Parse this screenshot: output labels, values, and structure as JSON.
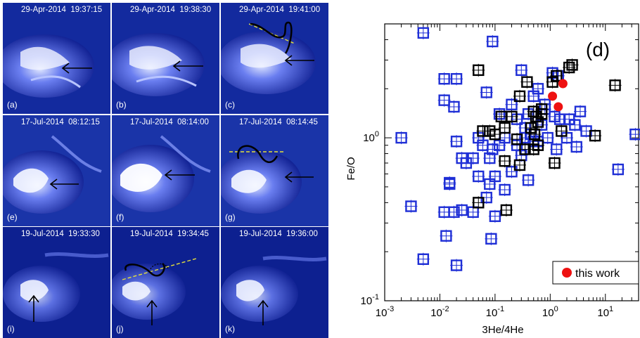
{
  "panels": [
    {
      "timestamp": "29-Apr-2014  19:37:15",
      "label": "(a)"
    },
    {
      "timestamp": "29-Apr-2014  19:38:30",
      "label": "(b)"
    },
    {
      "timestamp": "29-Apr-2014  19:41:00",
      "label": "(c)"
    },
    {
      "timestamp": "17-Jul-2014  08:12:15",
      "label": "(e)"
    },
    {
      "timestamp": "17-Jul-2014  08:14:00",
      "label": "(f)"
    },
    {
      "timestamp": "17-Jul-2014  08:14:45",
      "label": "(g)"
    },
    {
      "timestamp": "19-Jul-2014  19:33:30",
      "label": "(i)"
    },
    {
      "timestamp": "19-Jul-2014  19:34:45",
      "label": "(j)"
    },
    {
      "timestamp": "19-Jul-2014  19:36:00",
      "label": "(k)"
    }
  ],
  "chart_data": {
    "type": "scatter",
    "panel_label": "(d)",
    "xlabel": "3He/4He",
    "ylabel": "Fe/O",
    "xscale": "log",
    "yscale": "log",
    "xlim": [
      0.001,
      40
    ],
    "ylim": [
      0.1,
      5
    ],
    "x_ticks": [
      "10^-3",
      "10^-2",
      "10^-1",
      "10^0",
      "10^1"
    ],
    "y_ticks": [
      "10^-1",
      "10^0"
    ],
    "legend": {
      "label": "this work",
      "position": "bottom-right"
    },
    "colors": {
      "blue": "#1f2fd6",
      "black": "#000000",
      "red": "#ee1111"
    },
    "series": [
      {
        "name": "blue",
        "marker": "open-square",
        "points": [
          [
            0.005,
            4.4
          ],
          [
            0.09,
            3.9
          ],
          [
            0.012,
            2.3
          ],
          [
            0.02,
            2.3
          ],
          [
            0.012,
            1.7
          ],
          [
            0.018,
            1.55
          ],
          [
            0.07,
            1.9
          ],
          [
            0.12,
            1.4
          ],
          [
            0.3,
            2.6
          ],
          [
            0.5,
            1.8
          ],
          [
            0.8,
            1.5
          ],
          [
            1.1,
            2.5
          ],
          [
            1.4,
            2.4
          ],
          [
            1.5,
            1.3
          ],
          [
            2.2,
            1.3
          ],
          [
            3.5,
            1.45
          ],
          [
            4.5,
            1.1
          ],
          [
            2.8,
            1.2
          ],
          [
            2.0,
            1.0
          ],
          [
            1.3,
            0.85
          ],
          [
            3.0,
            0.88
          ],
          [
            0.2,
            1.6
          ],
          [
            0.25,
            1.3
          ],
          [
            0.35,
            1.15
          ],
          [
            0.45,
            1.05
          ],
          [
            0.6,
            0.95
          ],
          [
            0.7,
            1.2
          ],
          [
            0.9,
            1.0
          ],
          [
            0.15,
            1.0
          ],
          [
            0.12,
            0.9
          ],
          [
            0.09,
            0.85
          ],
          [
            0.08,
            0.75
          ],
          [
            0.06,
            0.9
          ],
          [
            0.05,
            1.0
          ],
          [
            0.04,
            0.75
          ],
          [
            0.03,
            0.7
          ],
          [
            0.025,
            0.75
          ],
          [
            0.02,
            0.95
          ],
          [
            0.015,
            0.52
          ],
          [
            0.015,
            0.53
          ],
          [
            0.05,
            0.58
          ],
          [
            0.08,
            0.52
          ],
          [
            0.1,
            0.58
          ],
          [
            0.15,
            0.48
          ],
          [
            0.2,
            0.62
          ],
          [
            0.3,
            0.78
          ],
          [
            0.4,
            0.55
          ],
          [
            0.003,
            0.38
          ],
          [
            0.012,
            0.35
          ],
          [
            0.018,
            0.35
          ],
          [
            0.025,
            0.36
          ],
          [
            0.04,
            0.35
          ],
          [
            0.07,
            0.43
          ],
          [
            0.1,
            0.33
          ],
          [
            0.013,
            0.25
          ],
          [
            0.085,
            0.24
          ],
          [
            0.005,
            0.18
          ],
          [
            0.02,
            0.165
          ],
          [
            0.002,
            1.0
          ],
          [
            17.0,
            0.64
          ],
          [
            35.0,
            1.05
          ],
          [
            0.4,
            1.4
          ],
          [
            0.6,
            2.0
          ],
          [
            0.8,
            1.6
          ],
          [
            1.2,
            1.35
          ],
          [
            0.25,
            0.9
          ],
          [
            0.35,
            1.0
          ],
          [
            0.5,
            0.95
          ]
        ]
      },
      {
        "name": "black",
        "marker": "open-square",
        "points": [
          [
            0.05,
            2.6
          ],
          [
            0.13,
            1.35
          ],
          [
            0.08,
            1.1
          ],
          [
            0.1,
            1.05
          ],
          [
            0.06,
            1.1
          ],
          [
            0.15,
            1.15
          ],
          [
            0.2,
            1.35
          ],
          [
            0.28,
            1.8
          ],
          [
            0.38,
            2.2
          ],
          [
            0.5,
            1.45
          ],
          [
            0.55,
            1.35
          ],
          [
            0.6,
            1.25
          ],
          [
            0.7,
            1.4
          ],
          [
            0.45,
            1.15
          ],
          [
            0.52,
            1.05
          ],
          [
            1.1,
            2.2
          ],
          [
            1.3,
            2.4
          ],
          [
            2.5,
            2.8
          ],
          [
            2.2,
            2.7
          ],
          [
            0.25,
            0.98
          ],
          [
            0.5,
            0.85
          ],
          [
            0.6,
            0.9
          ],
          [
            0.35,
            0.85
          ],
          [
            0.15,
            0.72
          ],
          [
            0.28,
            0.68
          ],
          [
            1.2,
            0.7
          ],
          [
            1.6,
            1.1
          ],
          [
            6.5,
            1.03
          ],
          [
            15.0,
            2.1
          ],
          [
            0.16,
            0.36
          ],
          [
            0.05,
            0.4
          ],
          [
            0.7,
            1.5
          ]
        ]
      },
      {
        "name": "this work",
        "marker": "filled-circle",
        "points": [
          [
            1.1,
            1.8
          ],
          [
            1.4,
            1.55
          ],
          [
            1.7,
            2.15
          ]
        ]
      }
    ]
  }
}
